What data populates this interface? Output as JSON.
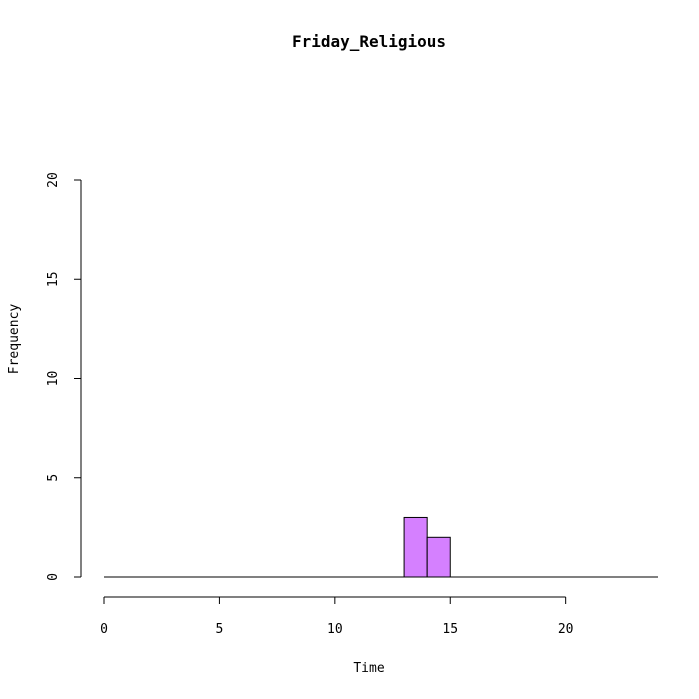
{
  "chart_data": {
    "type": "bar",
    "title": "Friday_Religious",
    "xlabel": "Time",
    "ylabel": "Frequency",
    "xlim": [
      0,
      24
    ],
    "ylim": [
      0,
      20
    ],
    "x_ticks": [
      "0",
      "5",
      "10",
      "15",
      "20"
    ],
    "y_ticks": [
      "0",
      "5",
      "10",
      "15",
      "20"
    ],
    "bin_width": 1,
    "bins": [
      {
        "start": 13,
        "end": 14,
        "count": 3
      },
      {
        "start": 14,
        "end": 15,
        "count": 2
      }
    ],
    "bar_color": "#D580FF",
    "grid": false
  }
}
